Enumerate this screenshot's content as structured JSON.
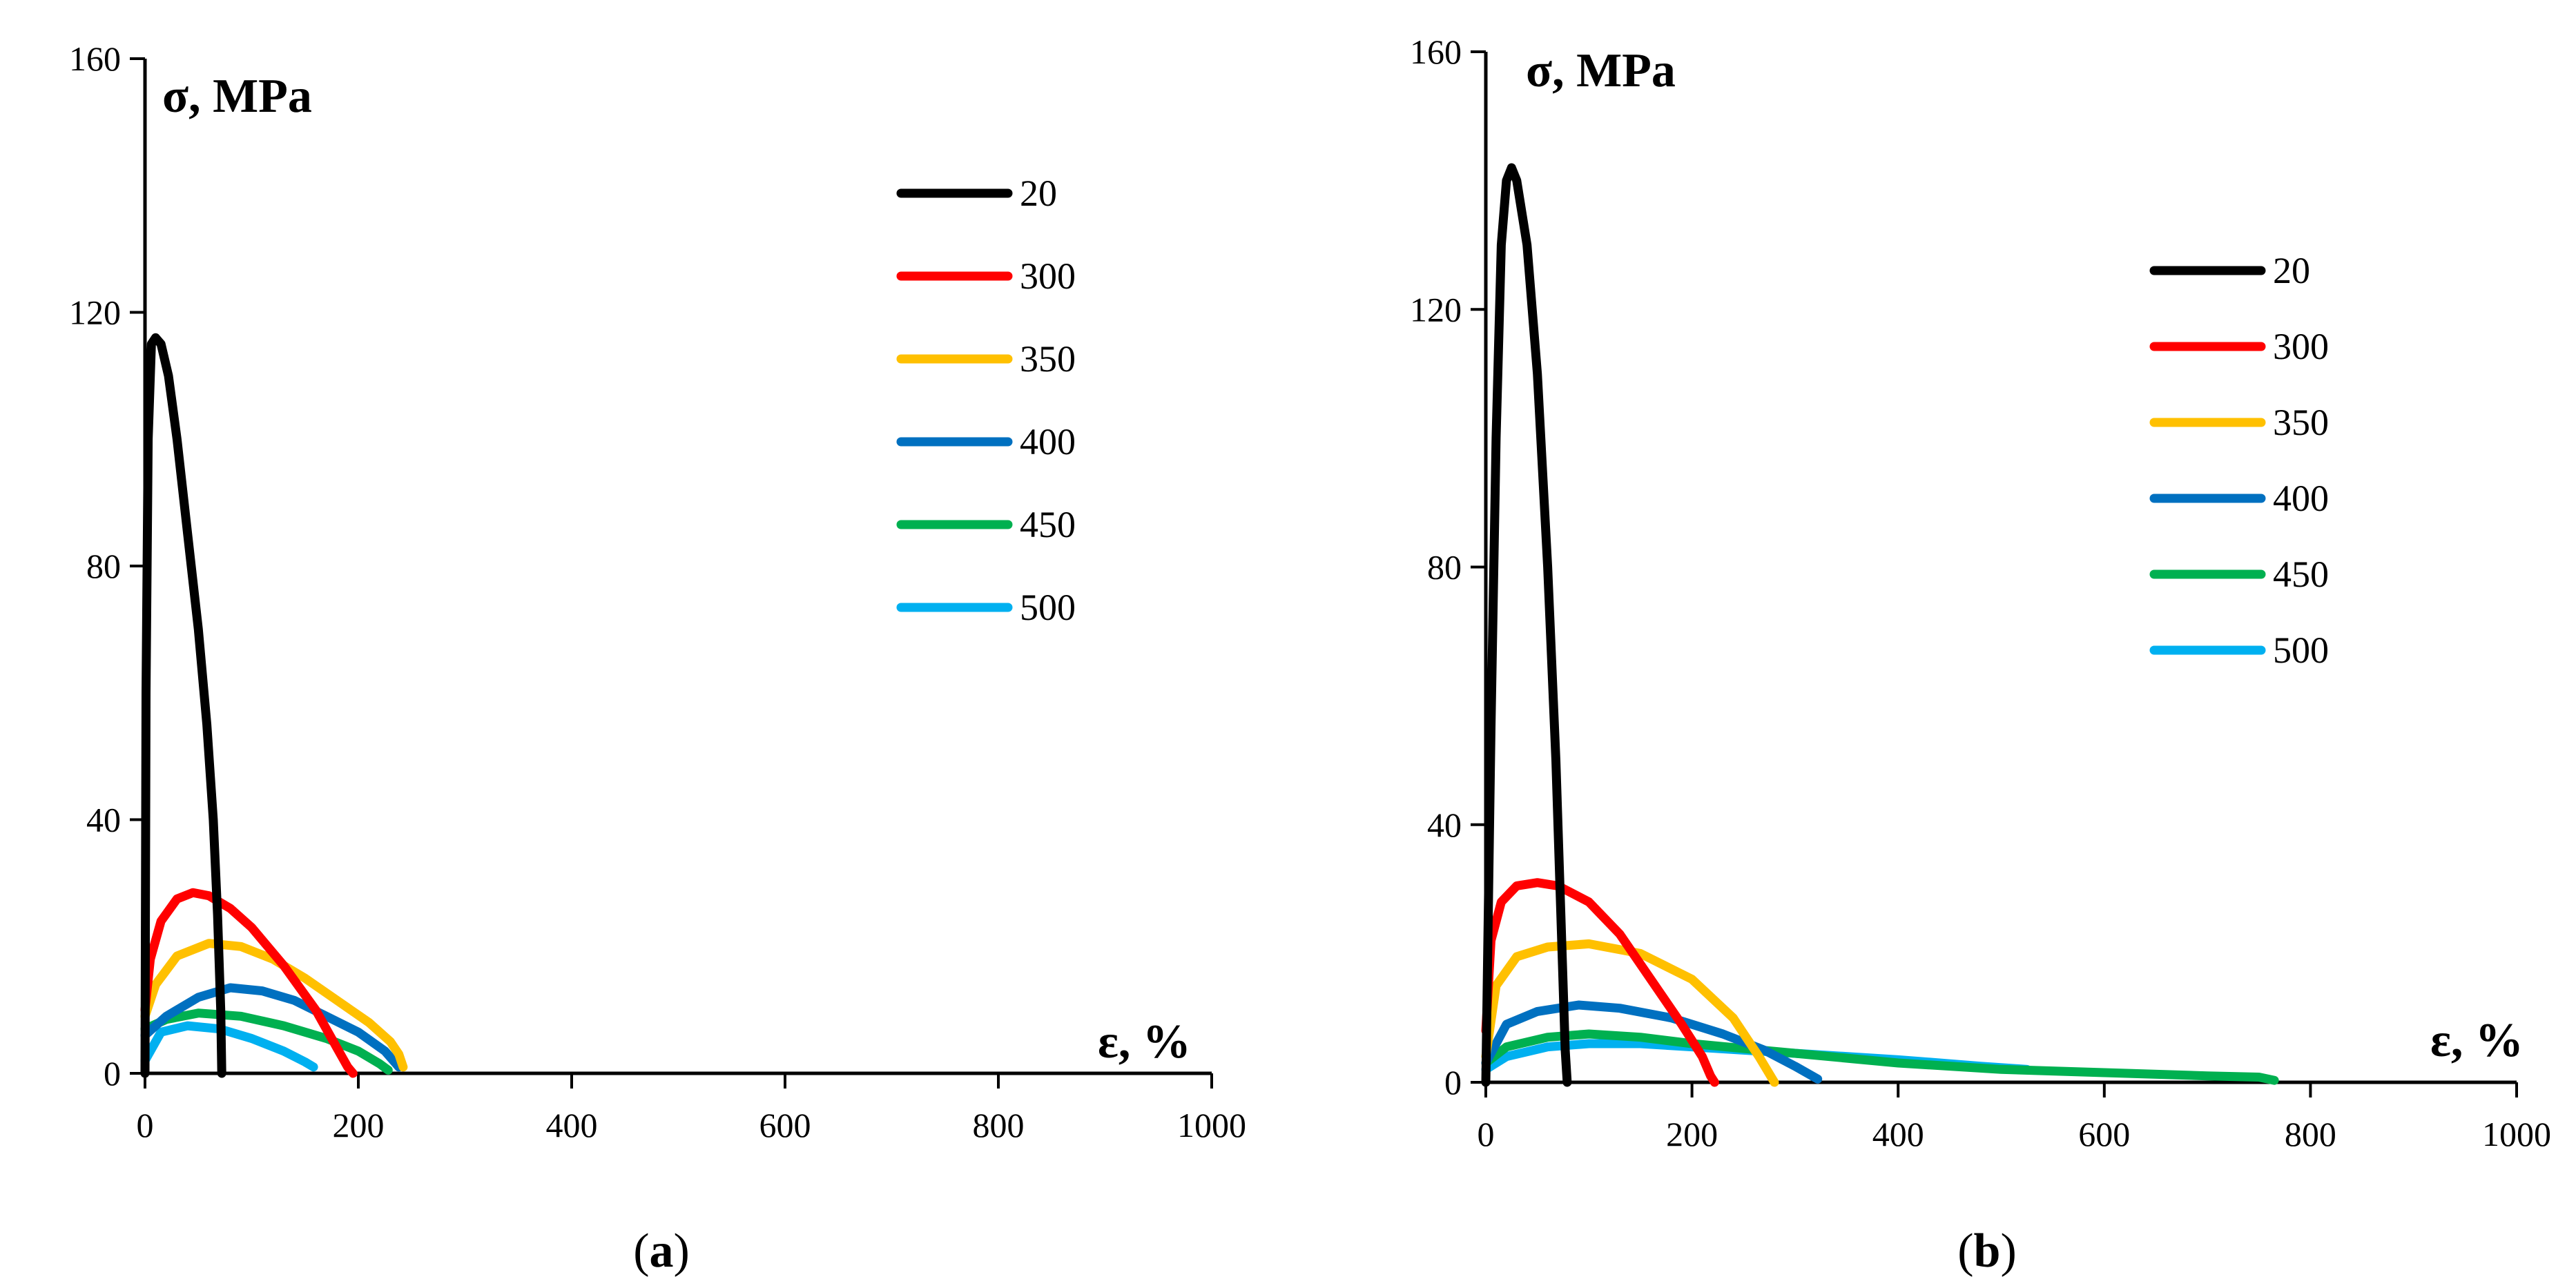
{
  "chart_data": [
    {
      "type": "line",
      "panel": "a",
      "caption_open": "(",
      "caption_letter": "a",
      "caption_close": ")",
      "ylabel": "σ, MPa",
      "xlabel": "ε, %",
      "xlim": [
        0,
        1000
      ],
      "ylim": [
        0,
        160
      ],
      "x_ticks": [
        "0",
        "200",
        "400",
        "600",
        "800",
        "1000"
      ],
      "y_ticks": [
        "0",
        "40",
        "80",
        "120",
        "160"
      ],
      "legend_position": "top-right",
      "series": [
        {
          "name": "20",
          "color": "#000000",
          "x": [
            0,
            1,
            3,
            6,
            10,
            15,
            22,
            30,
            40,
            50,
            58,
            64,
            68,
            71,
            72
          ],
          "y": [
            0,
            60,
            100,
            115,
            116,
            115,
            110,
            100,
            85,
            70,
            55,
            40,
            25,
            10,
            0
          ]
        },
        {
          "name": "300",
          "color": "#ff0000",
          "x": [
            0,
            5,
            15,
            30,
            45,
            60,
            80,
            100,
            130,
            160,
            180,
            190,
            195
          ],
          "y": [
            10,
            18,
            24,
            27.5,
            28.5,
            28,
            26,
            23,
            17,
            10,
            4,
            1,
            0
          ]
        },
        {
          "name": "350",
          "color": "#ffc000",
          "x": [
            0,
            10,
            30,
            60,
            90,
            120,
            150,
            180,
            210,
            230,
            238,
            242
          ],
          "y": [
            9,
            14,
            18.5,
            20.5,
            20,
            18,
            15,
            11.5,
            8,
            5,
            3,
            1
          ]
        },
        {
          "name": "400",
          "color": "#0070c0",
          "x": [
            0,
            20,
            50,
            80,
            110,
            140,
            170,
            200,
            225,
            238
          ],
          "y": [
            6,
            9,
            12,
            13.5,
            13,
            11.5,
            9,
            6.5,
            3.5,
            1
          ]
        },
        {
          "name": "450",
          "color": "#00b050",
          "x": [
            0,
            20,
            50,
            90,
            130,
            170,
            200,
            220,
            228
          ],
          "y": [
            7,
            8.5,
            9.5,
            9,
            7.5,
            5.5,
            3.5,
            1.5,
            0.5
          ]
        },
        {
          "name": "500",
          "color": "#00b0f0",
          "x": [
            0,
            15,
            40,
            70,
            100,
            130,
            150,
            158
          ],
          "y": [
            2,
            6.5,
            7.5,
            7,
            5.5,
            3.5,
            1.8,
            1
          ]
        }
      ]
    },
    {
      "type": "line",
      "panel": "b",
      "caption_open": "(",
      "caption_letter": "b",
      "caption_close": ")",
      "ylabel": "σ, MPa",
      "xlabel": "ε, %",
      "xlim": [
        0,
        1000
      ],
      "ylim": [
        0,
        160
      ],
      "x_ticks": [
        "0",
        "200",
        "400",
        "600",
        "800",
        "1000"
      ],
      "y_ticks": [
        "0",
        "40",
        "80",
        "120",
        "160"
      ],
      "legend_position": "top-right",
      "series": [
        {
          "name": "20",
          "color": "#000000",
          "x": [
            0,
            5,
            10,
            15,
            20,
            25,
            30,
            40,
            50,
            60,
            68,
            74,
            77,
            79
          ],
          "y": [
            0,
            55,
            100,
            130,
            140,
            142,
            140,
            130,
            110,
            80,
            50,
            20,
            5,
            0
          ]
        },
        {
          "name": "300",
          "color": "#ff0000",
          "x": [
            0,
            5,
            15,
            30,
            50,
            70,
            100,
            130,
            160,
            190,
            210,
            218,
            222
          ],
          "y": [
            8,
            22,
            28,
            30.5,
            31,
            30.5,
            28,
            23,
            16,
            9,
            4,
            1,
            0
          ]
        },
        {
          "name": "350",
          "color": "#ffc000",
          "x": [
            0,
            10,
            30,
            60,
            100,
            150,
            200,
            240,
            265,
            280
          ],
          "y": [
            4,
            15,
            19.5,
            21,
            21.5,
            20,
            16,
            10,
            4,
            0
          ]
        },
        {
          "name": "400",
          "color": "#0070c0",
          "x": [
            0,
            20,
            50,
            90,
            130,
            180,
            230,
            270,
            300,
            322
          ],
          "y": [
            3,
            9,
            11,
            12,
            11.5,
            10,
            7.5,
            5,
            2.5,
            0.5
          ]
        },
        {
          "name": "450",
          "color": "#00b050",
          "x": [
            0,
            20,
            60,
            100,
            150,
            200,
            300,
            400,
            500,
            600,
            700,
            750,
            765
          ],
          "y": [
            3,
            5.5,
            7,
            7.5,
            7,
            6,
            4.5,
            3,
            2,
            1.5,
            1,
            0.8,
            0.3
          ]
        },
        {
          "name": "500",
          "color": "#00b0f0",
          "x": [
            0,
            20,
            60,
            100,
            150,
            200,
            300,
            400,
            480,
            525
          ],
          "y": [
            2,
            4,
            5.5,
            6,
            6,
            5.5,
            4.5,
            3.5,
            2.5,
            2
          ]
        }
      ]
    }
  ]
}
